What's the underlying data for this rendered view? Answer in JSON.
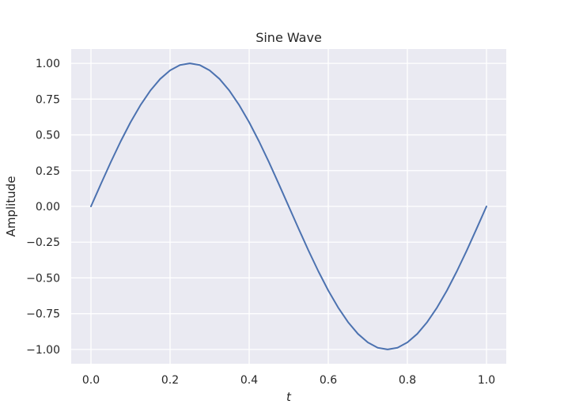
{
  "chart_data": {
    "type": "line",
    "title": "Sine Wave",
    "xlabel": "t",
    "ylabel": "Amplitude",
    "xlim": [
      -0.05,
      1.05
    ],
    "ylim": [
      -1.1,
      1.1
    ],
    "x_ticks": [
      {
        "value": 0.0,
        "label": "0.0"
      },
      {
        "value": 0.2,
        "label": "0.2"
      },
      {
        "value": 0.4,
        "label": "0.4"
      },
      {
        "value": 0.6,
        "label": "0.6"
      },
      {
        "value": 0.8,
        "label": "0.8"
      },
      {
        "value": 1.0,
        "label": "1.0"
      }
    ],
    "y_ticks": [
      {
        "value": 1.0,
        "label": "1.00"
      },
      {
        "value": 0.75,
        "label": "0.75"
      },
      {
        "value": 0.5,
        "label": "0.50"
      },
      {
        "value": 0.25,
        "label": "0.25"
      },
      {
        "value": 0.0,
        "label": "0.00"
      },
      {
        "value": -0.25,
        "label": "−0.25"
      },
      {
        "value": -0.5,
        "label": "−0.50"
      },
      {
        "value": -0.75,
        "label": "−0.75"
      },
      {
        "value": -1.0,
        "label": "−1.00"
      }
    ],
    "grid": true,
    "style": {
      "background": "#eaeaf2",
      "grid_color": "#ffffff",
      "line_color": "#4c72b0"
    },
    "series": [
      {
        "x": [
          0.0,
          0.025,
          0.05,
          0.075,
          0.1,
          0.125,
          0.15,
          0.175,
          0.2,
          0.225,
          0.25,
          0.275,
          0.3,
          0.325,
          0.35,
          0.375,
          0.4,
          0.425,
          0.45,
          0.475,
          0.5,
          0.525,
          0.55,
          0.575,
          0.6,
          0.625,
          0.65,
          0.675,
          0.7,
          0.725,
          0.75,
          0.775,
          0.8,
          0.825,
          0.85,
          0.875,
          0.9,
          0.925,
          0.95,
          0.975,
          1.0
        ],
        "y": [
          0.0,
          0.156,
          0.309,
          0.454,
          0.588,
          0.707,
          0.809,
          0.891,
          0.951,
          0.988,
          1.0,
          0.988,
          0.951,
          0.891,
          0.809,
          0.707,
          0.588,
          0.454,
          0.309,
          0.156,
          0.0,
          -0.156,
          -0.309,
          -0.454,
          -0.588,
          -0.707,
          -0.809,
          -0.891,
          -0.951,
          -0.988,
          -1.0,
          -0.988,
          -0.951,
          -0.891,
          -0.809,
          -0.707,
          -0.588,
          -0.454,
          -0.309,
          -0.156,
          0.0
        ]
      }
    ]
  }
}
